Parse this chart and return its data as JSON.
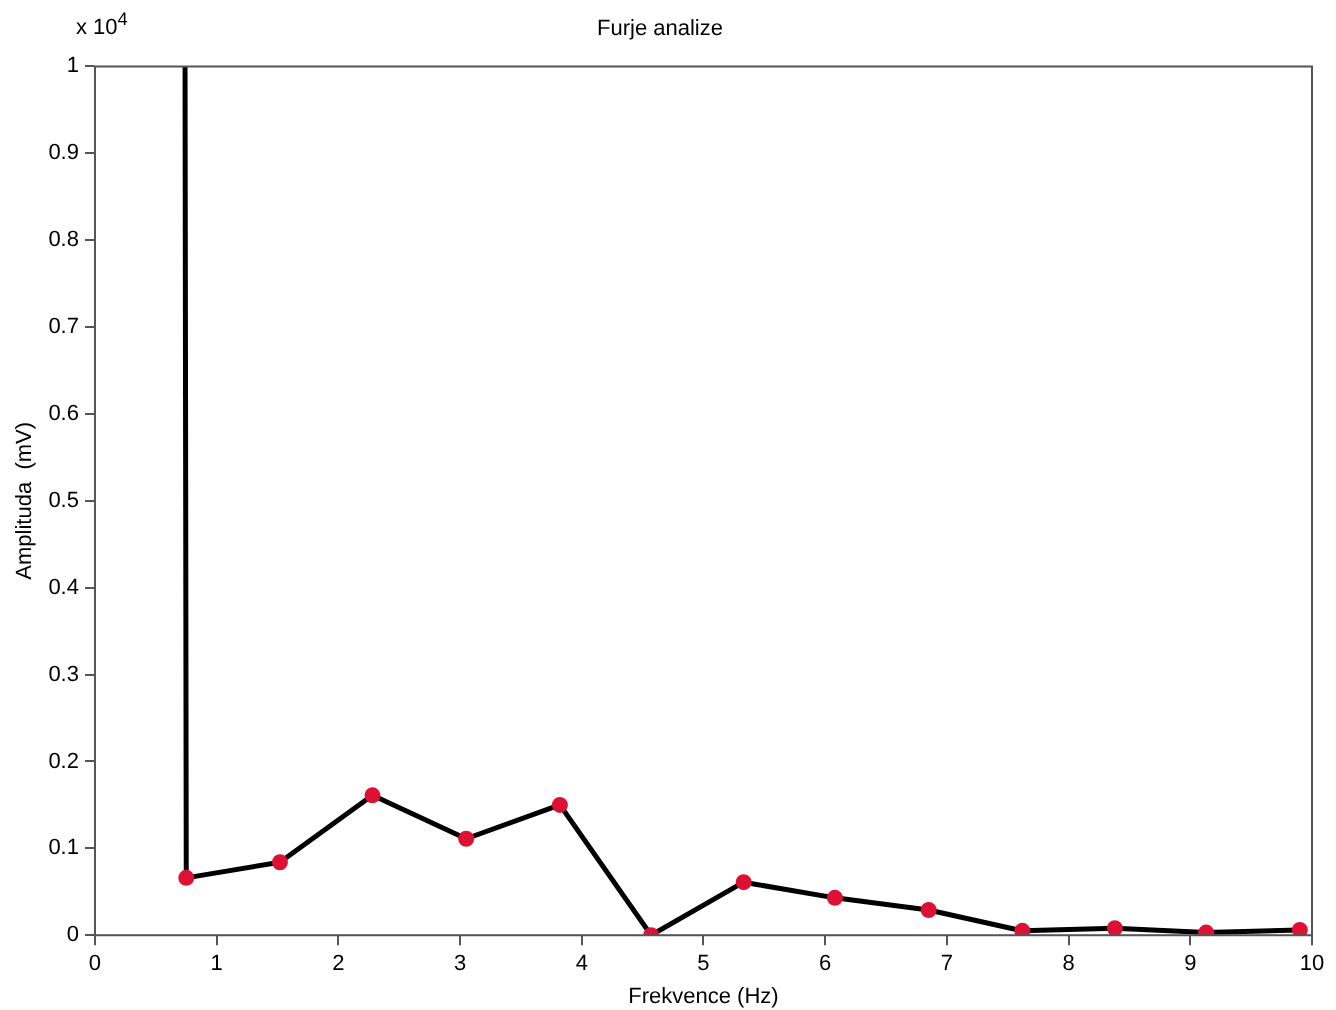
{
  "chart_data": {
    "type": "line",
    "title": "Furje analize",
    "xlabel": "Frekvence (Hz)",
    "ylabel": "Amplituda  (mV)",
    "annotations": [
      "x 10$^{4}$"
    ],
    "xlim": [
      0,
      10
    ],
    "xticks": [
      0,
      1,
      2,
      3,
      4,
      5,
      6,
      7,
      8,
      9,
      10
    ],
    "ylim": [
      0,
      1
    ],
    "yticks": [
      0,
      0.1,
      0.2,
      0.3,
      0.4,
      0.5,
      0.6,
      0.7,
      0.8,
      0.9,
      1
    ],
    "grid": false,
    "legend": false,
    "series": [
      {
        "color": "#000000",
        "marker": "none",
        "x": [
          0.74,
          0.75,
          1.52,
          2.28,
          3.05,
          3.82,
          4.57,
          5.33,
          6.08,
          6.85,
          7.62,
          8.38,
          9.13,
          9.9
        ],
        "values": [
          1,
          0.066,
          0.084,
          0.161,
          0.111,
          0.15,
          0,
          0.061,
          0.043,
          0.029,
          0.005,
          0.008,
          0.003,
          0.006
        ]
      },
      {
        "type": "scatter",
        "color": "#dd1133",
        "marker": "circle",
        "x": [
          0.75,
          1.52,
          2.28,
          3.05,
          3.82,
          4.57,
          5.33,
          6.08,
          6.85,
          7.62,
          8.38,
          9.13,
          9.9
        ],
        "values": [
          0.066,
          0.084,
          0.161,
          0.111,
          0.15,
          0,
          0.061,
          0.043,
          0.029,
          0.005,
          0.008,
          0.003,
          0.006
        ]
      }
    ]
  }
}
